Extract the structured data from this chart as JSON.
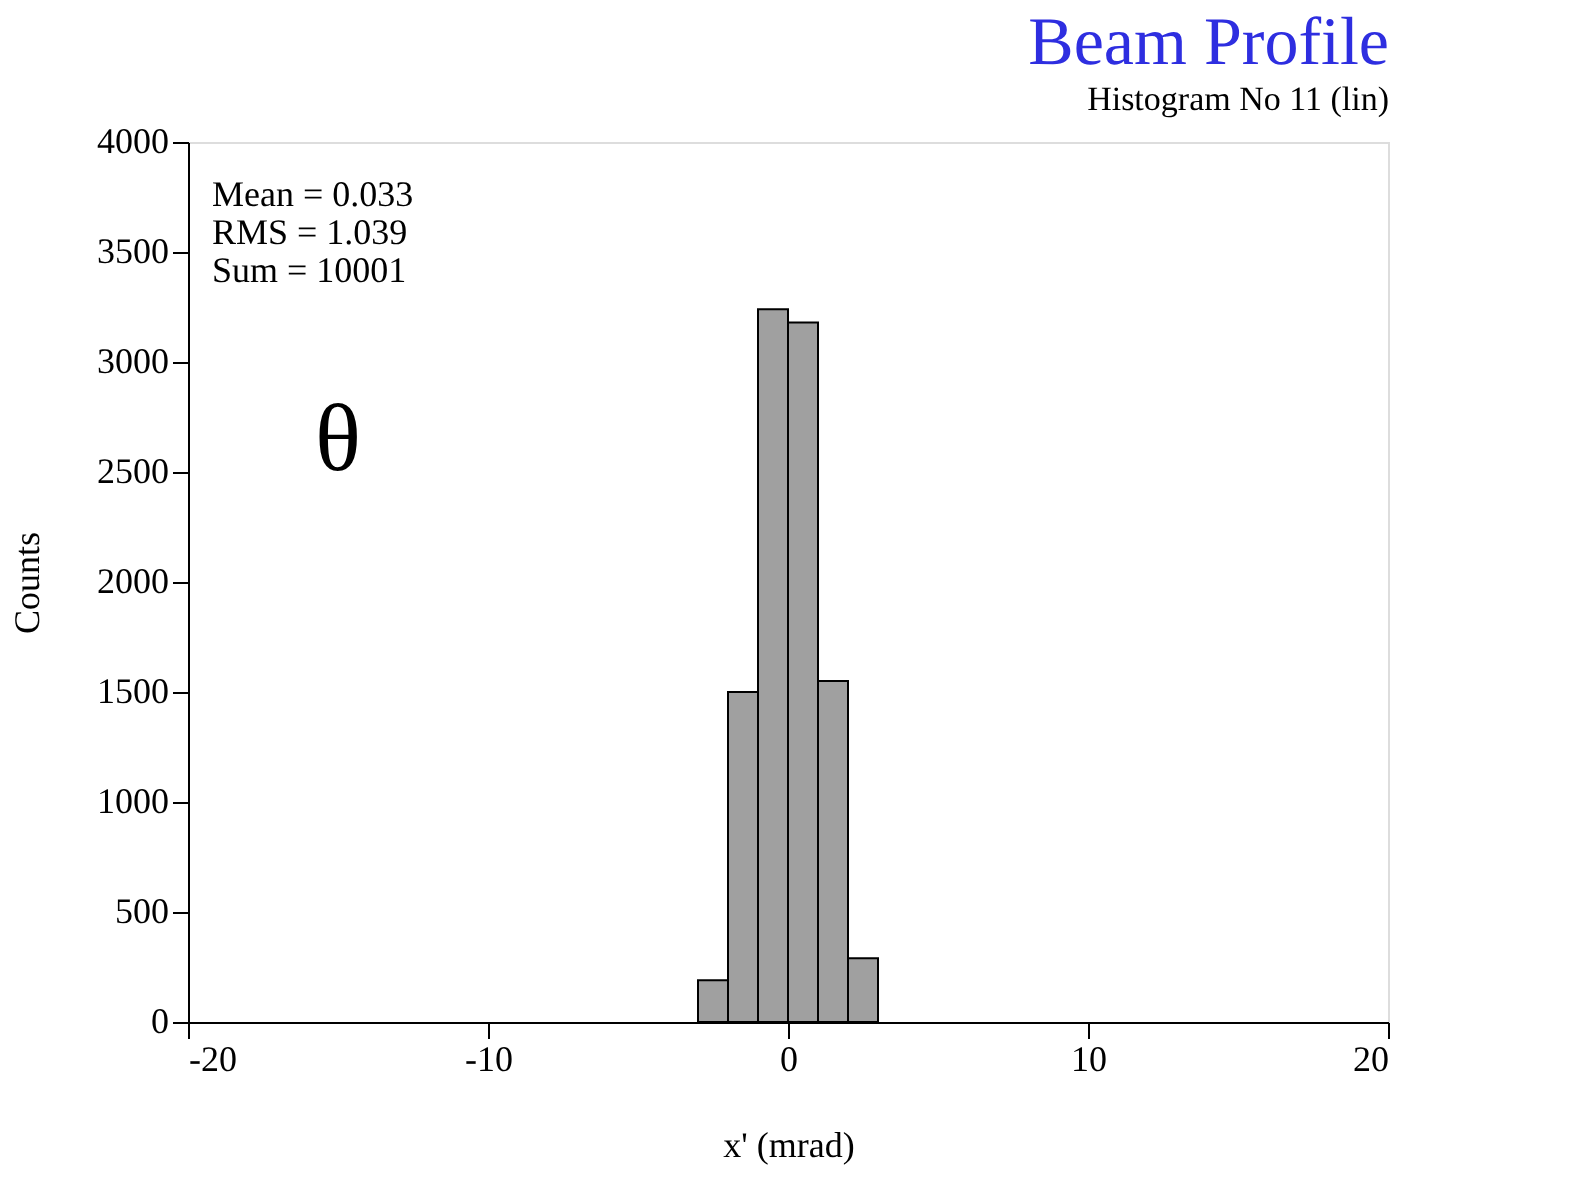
{
  "chart_data": {
    "type": "histogram",
    "title": "Beam Profile",
    "subtitle": "Histogram No 11 (lin)",
    "xlabel": "x' (mrad)",
    "ylabel": "Counts",
    "bins": [
      -3,
      -2,
      -1,
      0,
      1,
      2,
      3
    ],
    "values": [
      190,
      1500,
      3240,
      3180,
      1550,
      290
    ],
    "color": "#a0a0a0",
    "xlim": [
      -20,
      20
    ],
    "xticks": [
      -20,
      -10,
      0,
      10,
      20
    ],
    "ylim": [
      0,
      4000
    ],
    "yticks": [
      0,
      500,
      1000,
      1500,
      2000,
      2500,
      3000,
      3500,
      4000
    ],
    "grid": false,
    "annotations": [
      "Mean =   0.033",
      "RMS =   1.039",
      "Sum =   10001",
      "θ"
    ]
  }
}
